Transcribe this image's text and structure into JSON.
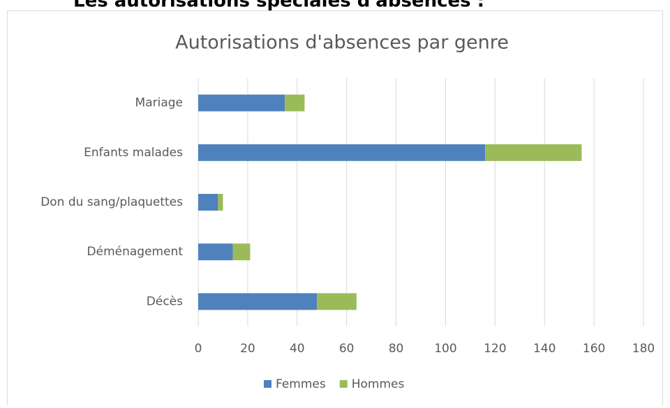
{
  "heading": "Les autorisations spéciales d'absences :",
  "chart_data": {
    "type": "bar",
    "orientation": "horizontal",
    "stacked": true,
    "title": "Autorisations d'absences par genre",
    "categories": [
      "Mariage",
      "Enfants malades",
      "Don du sang/plaquettes",
      "Déménagement",
      "Décès"
    ],
    "series": [
      {
        "name": "Femmes",
        "color": "#4f81bd",
        "values": [
          35,
          116,
          8,
          14,
          48
        ]
      },
      {
        "name": "Hommes",
        "color": "#9bbb59",
        "values": [
          8,
          39,
          2,
          7,
          16
        ]
      }
    ],
    "xlim": [
      0,
      180
    ],
    "xticks": [
      0,
      20,
      40,
      60,
      80,
      100,
      120,
      140,
      160,
      180
    ],
    "grid": true,
    "legend": "bottom"
  }
}
